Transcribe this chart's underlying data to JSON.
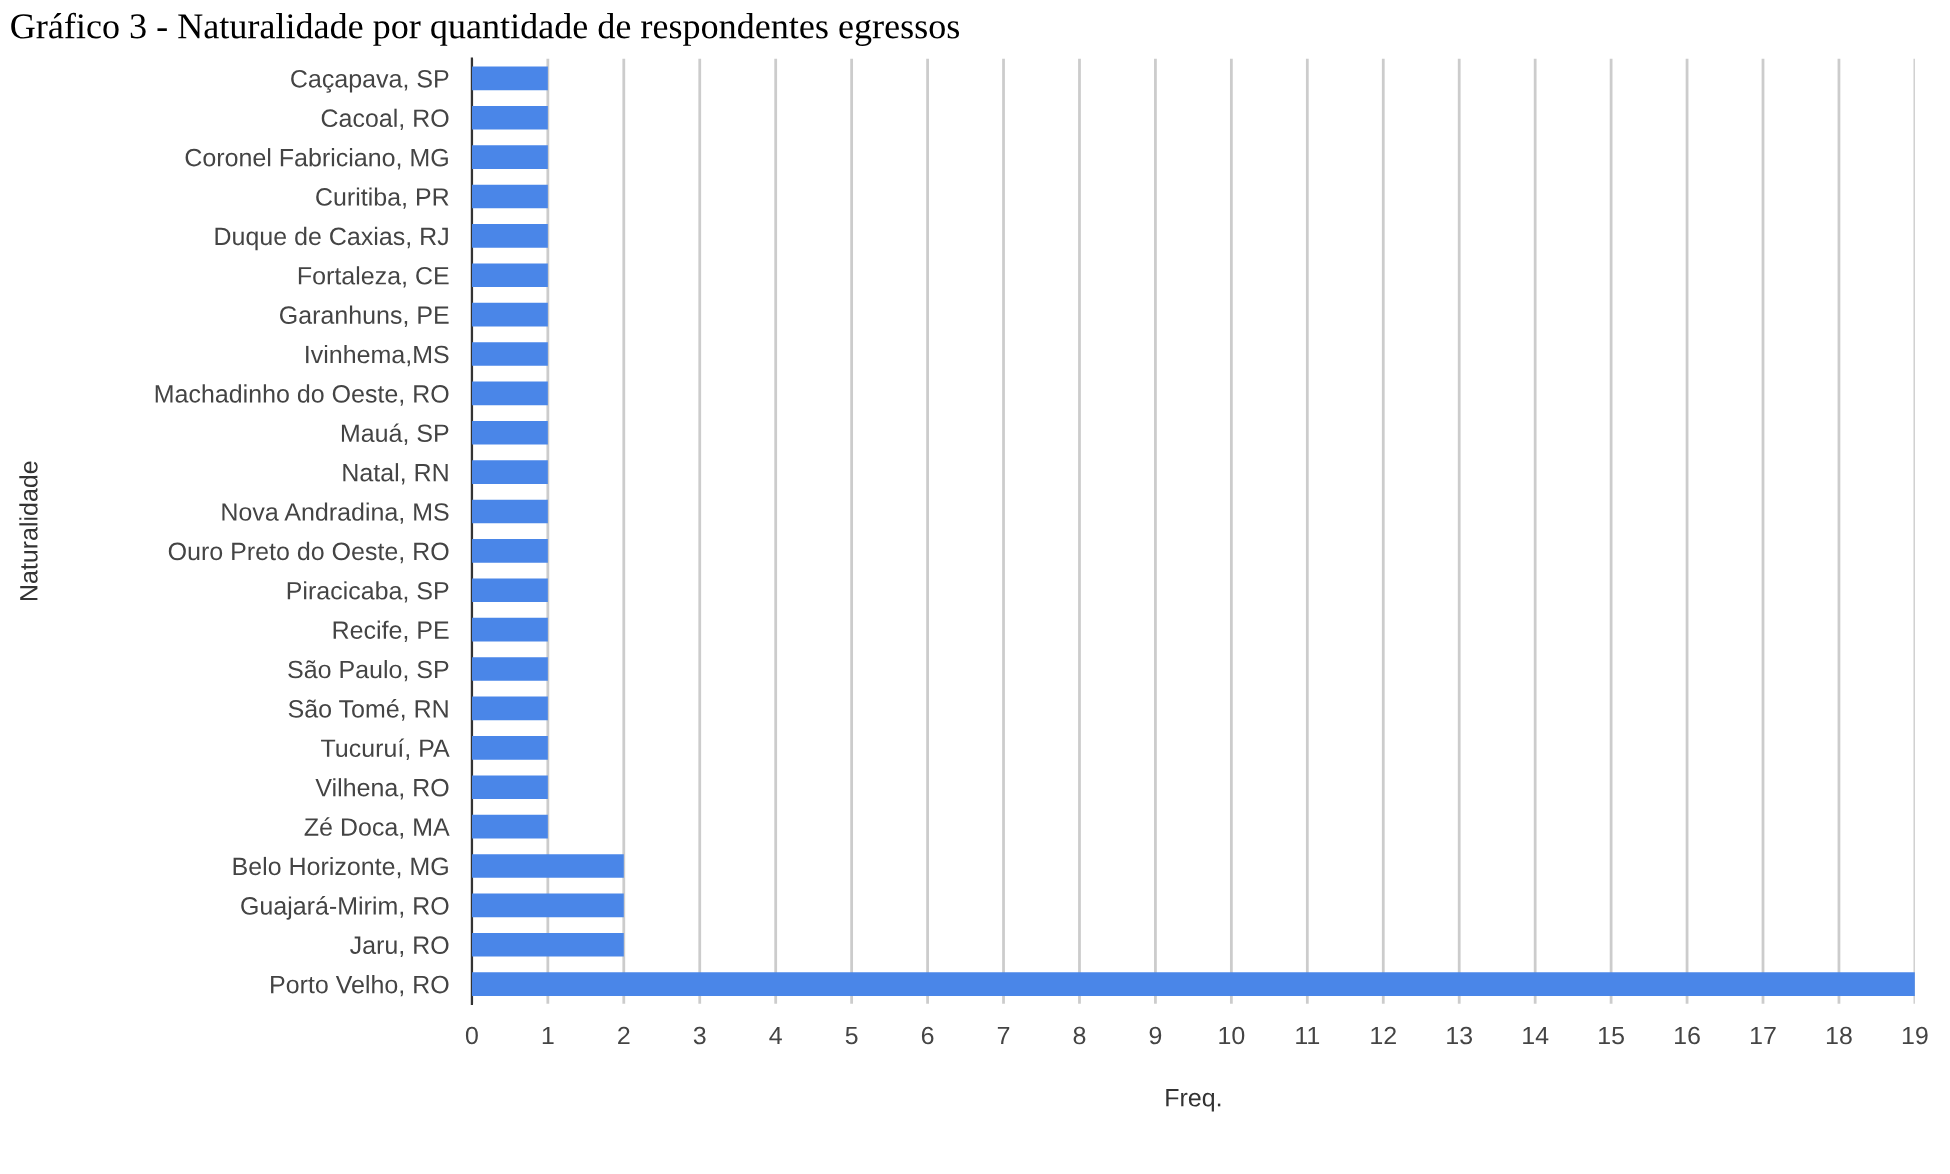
{
  "chart_data": {
    "type": "bar",
    "orientation": "horizontal",
    "title": "Gráfico 3 - Naturalidade por quantidade de respondentes egressos",
    "xlabel": "Freq.",
    "ylabel": "Naturalidade",
    "categories": [
      "Caçapava, SP",
      "Cacoal, RO",
      "Coronel Fabriciano, MG",
      "Curitiba, PR",
      "Duque de Caxias, RJ",
      "Fortaleza, CE",
      "Garanhuns, PE",
      "Ivinhema,MS",
      "Machadinho do Oeste, RO",
      "Mauá, SP",
      "Natal, RN",
      "Nova Andradina, MS",
      "Ouro Preto do Oeste, RO",
      "Piracicaba, SP",
      "Recife, PE",
      "São Paulo, SP",
      "São Tomé, RN",
      "Tucuruí, PA",
      "Vilhena, RO",
      "Zé Doca, MA",
      "Belo Horizonte, MG",
      "Guajará-Mirim, RO",
      "Jaru, RO",
      "Porto Velho, RO"
    ],
    "values": [
      1,
      1,
      1,
      1,
      1,
      1,
      1,
      1,
      1,
      1,
      1,
      1,
      1,
      1,
      1,
      1,
      1,
      1,
      1,
      1,
      2,
      2,
      2,
      19
    ],
    "color": "#4a86e8",
    "xlim": [
      0,
      19
    ],
    "xticks": [
      0,
      1,
      2,
      3,
      4,
      5,
      6,
      7,
      8,
      9,
      10,
      11,
      12,
      13,
      14,
      15,
      16,
      17,
      18,
      19
    ],
    "grid": "x",
    "legend": false
  }
}
